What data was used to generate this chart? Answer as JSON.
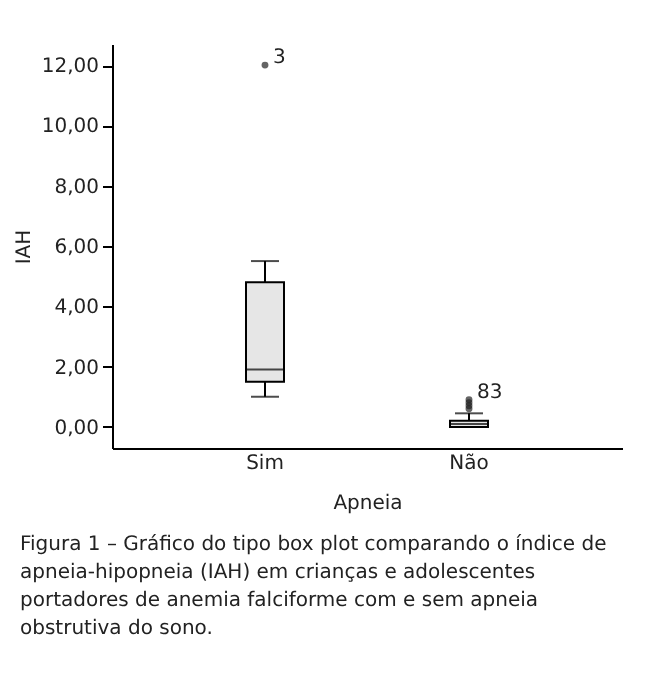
{
  "chart_data": {
    "type": "box",
    "categories": [
      "Sim",
      "Não"
    ],
    "xlabel": "Apneia",
    "ylabel": "IAH",
    "boxes": [
      {
        "low": 1.0,
        "q1": 1.5,
        "median": 1.9,
        "q3": 4.8,
        "high": 5.5,
        "outliers": [
          12.0
        ]
      },
      {
        "low": 0.0,
        "q1": 0.0,
        "median": 0.1,
        "q3": 0.2,
        "high": 0.45,
        "outliers": [
          0.6,
          0.7,
          0.8,
          0.9
        ]
      }
    ],
    "ylim": [
      -0.7,
      12.7
    ],
    "yticks": [
      {
        "value": 0,
        "label": "0,00"
      },
      {
        "value": 2,
        "label": "2,00"
      },
      {
        "value": 4,
        "label": "4,00"
      },
      {
        "value": 6,
        "label": "6,00"
      },
      {
        "value": 8,
        "label": "8,00"
      },
      {
        "value": 10,
        "label": "10,00"
      },
      {
        "value": 12,
        "label": "12,00"
      }
    ],
    "grid": false,
    "color": "#e6e6e6",
    "annotations": [
      "3",
      "83",
      "Figura 1 – Gráfico do tipo box plot comparando o índice de apneia-hipopneia (IAH) em crianças e adolescentes portadores de anemia falciforme com e sem apneia obstrutiva do sono."
    ]
  }
}
